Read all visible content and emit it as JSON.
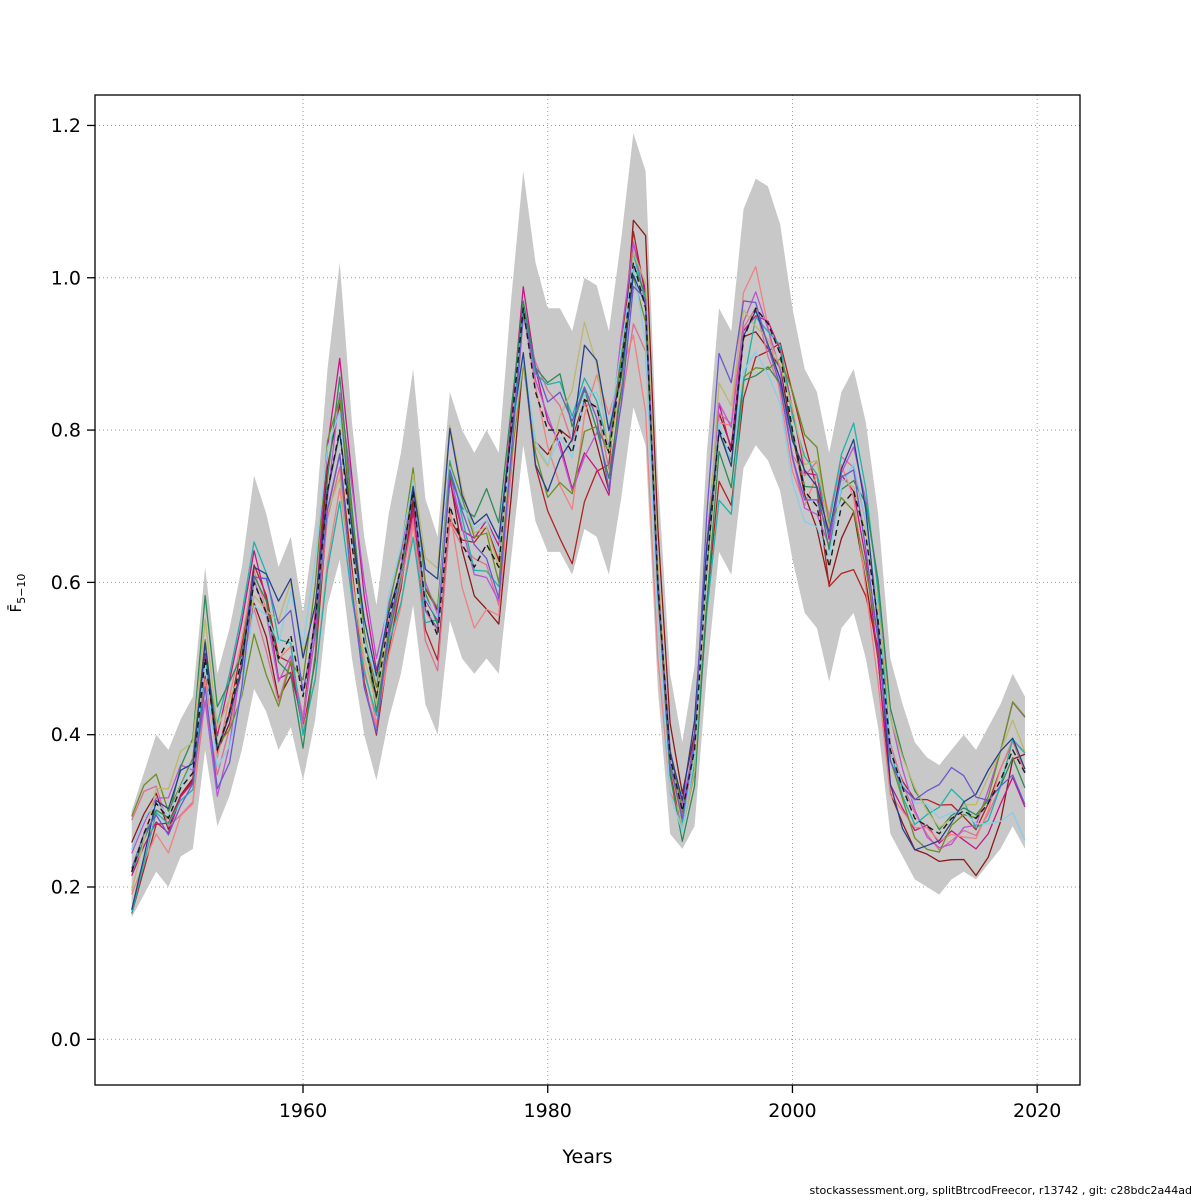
{
  "footer": "stockassessment.org, splitBtrcodFreecor, r13742 , git: c28bdc2a44ad",
  "chart_data": {
    "type": "line",
    "title": "",
    "xlabel": "Years",
    "ylabel": "F̄5−10",
    "ylabel_main": "F̄",
    "ylabel_sub": "5−10",
    "xlim": [
      1943,
      2023.5
    ],
    "ylim": [
      -0.06,
      1.24
    ],
    "x_ticks": [
      1960,
      1980,
      2000,
      2020
    ],
    "y_ticks": [
      0.0,
      0.2,
      0.4,
      0.6,
      0.8,
      1.0,
      1.2
    ],
    "grid": "dotted",
    "legend": "none",
    "band_color": "#c8c8c8",
    "central_color": "#1a1a1a",
    "central_style": "dashed",
    "jitter_amp": 0.3,
    "retro_runs": 13,
    "retro_colors": [
      "#8B1A1A",
      "#B22222",
      "#C71585",
      "#DB7093",
      "#F08080",
      "#BA55D3",
      "#20B2AA",
      "#2E8B57",
      "#6B8E23",
      "#BDB76B",
      "#87CEEB",
      "#27408B",
      "#6959CD"
    ],
    "years": [
      1946,
      1947,
      1948,
      1949,
      1950,
      1951,
      1952,
      1953,
      1954,
      1955,
      1956,
      1957,
      1958,
      1959,
      1960,
      1961,
      1962,
      1963,
      1964,
      1965,
      1966,
      1967,
      1968,
      1969,
      1970,
      1971,
      1972,
      1973,
      1974,
      1975,
      1976,
      1977,
      1978,
      1979,
      1980,
      1981,
      1982,
      1983,
      1984,
      1985,
      1986,
      1987,
      1988,
      1989,
      1990,
      1991,
      1992,
      1993,
      1994,
      1995,
      1996,
      1997,
      1998,
      1999,
      2000,
      2001,
      2002,
      2003,
      2004,
      2005,
      2006,
      2007,
      2008,
      2009,
      2010,
      2011,
      2012,
      2013,
      2014,
      2015,
      2016,
      2017,
      2018,
      2019
    ],
    "central": [
      0.22,
      0.27,
      0.31,
      0.29,
      0.33,
      0.35,
      0.5,
      0.38,
      0.43,
      0.5,
      0.6,
      0.56,
      0.5,
      0.53,
      0.45,
      0.55,
      0.72,
      0.8,
      0.65,
      0.52,
      0.45,
      0.55,
      0.62,
      0.72,
      0.57,
      0.53,
      0.7,
      0.65,
      0.62,
      0.65,
      0.62,
      0.8,
      0.96,
      0.85,
      0.8,
      0.8,
      0.77,
      0.84,
      0.83,
      0.77,
      0.88,
      1.02,
      0.96,
      0.6,
      0.37,
      0.3,
      0.38,
      0.62,
      0.8,
      0.77,
      0.92,
      0.96,
      0.94,
      0.9,
      0.8,
      0.72,
      0.7,
      0.62,
      0.7,
      0.72,
      0.66,
      0.55,
      0.38,
      0.33,
      0.29,
      0.28,
      0.27,
      0.29,
      0.3,
      0.29,
      0.31,
      0.34,
      0.38,
      0.35
    ],
    "band_lo": [
      0.16,
      0.19,
      0.22,
      0.2,
      0.24,
      0.25,
      0.38,
      0.28,
      0.32,
      0.38,
      0.46,
      0.43,
      0.38,
      0.41,
      0.34,
      0.42,
      0.57,
      0.63,
      0.5,
      0.4,
      0.34,
      0.42,
      0.48,
      0.57,
      0.44,
      0.4,
      0.55,
      0.5,
      0.48,
      0.5,
      0.48,
      0.63,
      0.78,
      0.68,
      0.64,
      0.64,
      0.61,
      0.67,
      0.66,
      0.61,
      0.71,
      0.83,
      0.78,
      0.46,
      0.27,
      0.25,
      0.28,
      0.48,
      0.64,
      0.61,
      0.75,
      0.78,
      0.76,
      0.72,
      0.63,
      0.56,
      0.54,
      0.47,
      0.54,
      0.56,
      0.5,
      0.41,
      0.27,
      0.24,
      0.21,
      0.2,
      0.19,
      0.21,
      0.22,
      0.21,
      0.23,
      0.25,
      0.28,
      0.25
    ],
    "band_hi": [
      0.3,
      0.35,
      0.4,
      0.38,
      0.42,
      0.45,
      0.62,
      0.48,
      0.54,
      0.62,
      0.74,
      0.69,
      0.62,
      0.66,
      0.56,
      0.68,
      0.88,
      1.02,
      0.81,
      0.66,
      0.57,
      0.69,
      0.77,
      0.88,
      0.71,
      0.66,
      0.85,
      0.8,
      0.77,
      0.8,
      0.77,
      0.97,
      1.14,
      1.02,
      0.96,
      0.96,
      0.93,
      1.0,
      0.99,
      0.93,
      1.05,
      1.19,
      1.14,
      0.74,
      0.48,
      0.39,
      0.49,
      0.77,
      0.96,
      0.93,
      1.09,
      1.13,
      1.12,
      1.07,
      0.96,
      0.88,
      0.85,
      0.77,
      0.85,
      0.88,
      0.81,
      0.69,
      0.5,
      0.44,
      0.39,
      0.37,
      0.36,
      0.38,
      0.4,
      0.38,
      0.41,
      0.44,
      0.48,
      0.45
    ]
  }
}
